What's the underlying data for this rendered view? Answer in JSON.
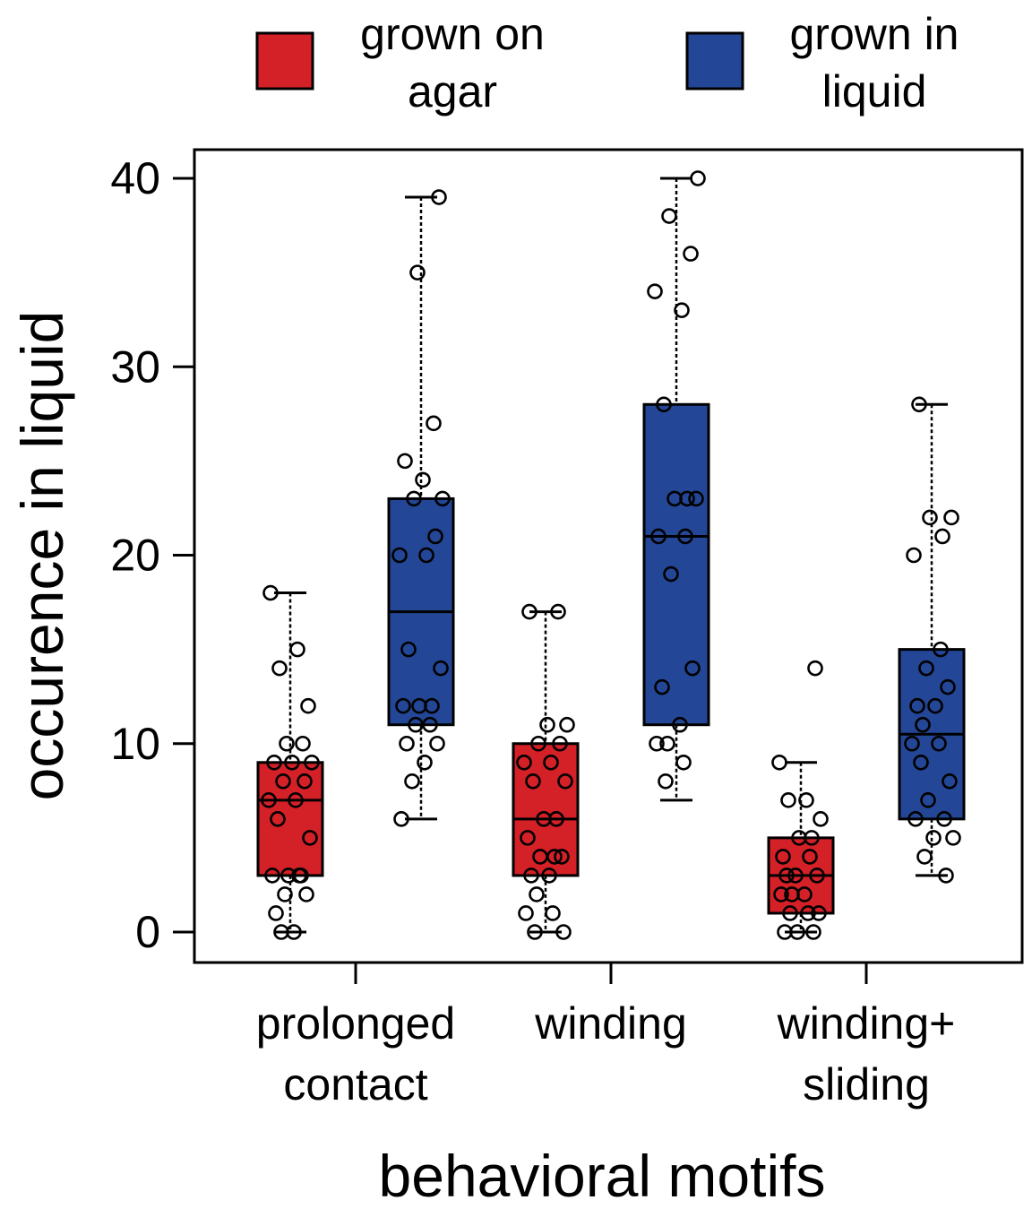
{
  "chart_data": {
    "type": "boxplot",
    "xlabel": "behavioral motifs",
    "ylabel": "occurence in liquid",
    "ylim": [
      -1.6,
      41.6
    ],
    "yticks": [
      0,
      10,
      20,
      30,
      40
    ],
    "categories": [
      {
        "lines": [
          "prolonged",
          "contact"
        ]
      },
      {
        "lines": [
          "winding"
        ]
      },
      {
        "lines": [
          "winding+",
          "sliding"
        ]
      }
    ],
    "legend": {
      "placement": "top",
      "entries": [
        {
          "lines": [
            "grown on",
            "agar"
          ],
          "color": "#d42027"
        },
        {
          "lines": [
            "grown in",
            "liquid"
          ],
          "color": "#234796"
        }
      ]
    },
    "series": [
      {
        "color": "#d42027",
        "boxes": [
          {
            "min": 0,
            "q1": 3,
            "median": 7,
            "q3": 9,
            "max": 18,
            "points": [
              18,
              15,
              14,
              12,
              10,
              10,
              9,
              9,
              9,
              8,
              8,
              7,
              7,
              6,
              5,
              3,
              3,
              3,
              3,
              2,
              2,
              1,
              0,
              0
            ]
          },
          {
            "min": 0,
            "q1": 3,
            "median": 6,
            "q3": 10,
            "max": 17,
            "points": [
              17,
              17,
              11,
              11,
              10,
              10,
              9,
              9,
              8,
              8,
              6,
              6,
              5,
              4,
              4,
              4,
              3,
              3,
              2,
              1,
              1,
              0,
              0
            ]
          },
          {
            "min": 0,
            "q1": 1,
            "median": 3,
            "q3": 5,
            "max": 9,
            "points": [
              14,
              9,
              7,
              7,
              6,
              5,
              5,
              4,
              4,
              3,
              3,
              3,
              2,
              2,
              2,
              1,
              1,
              1,
              0,
              0,
              0
            ]
          }
        ]
      },
      {
        "color": "#234796",
        "boxes": [
          {
            "min": 6,
            "q1": 11,
            "median": 17,
            "q3": 23,
            "max": 39,
            "points": [
              39,
              35,
              27,
              25,
              24,
              23,
              23,
              21,
              20,
              20,
              15,
              14,
              12,
              12,
              12,
              11,
              11,
              10,
              10,
              9,
              8,
              6
            ]
          },
          {
            "min": 7,
            "q1": 11,
            "median": 21,
            "q3": 28,
            "max": 40,
            "points": [
              40,
              38,
              36,
              34,
              33,
              28,
              23,
              23,
              23,
              21,
              21,
              19,
              14,
              13,
              11,
              10,
              10,
              9,
              8
            ]
          },
          {
            "min": 3,
            "q1": 6,
            "median": 10.5,
            "q3": 15,
            "max": 28,
            "points": [
              28,
              22,
              22,
              21,
              20,
              15,
              14,
              13,
              12,
              12,
              11,
              10,
              10,
              9,
              8,
              7,
              6,
              6,
              5,
              5,
              4,
              3
            ]
          }
        ]
      }
    ]
  }
}
